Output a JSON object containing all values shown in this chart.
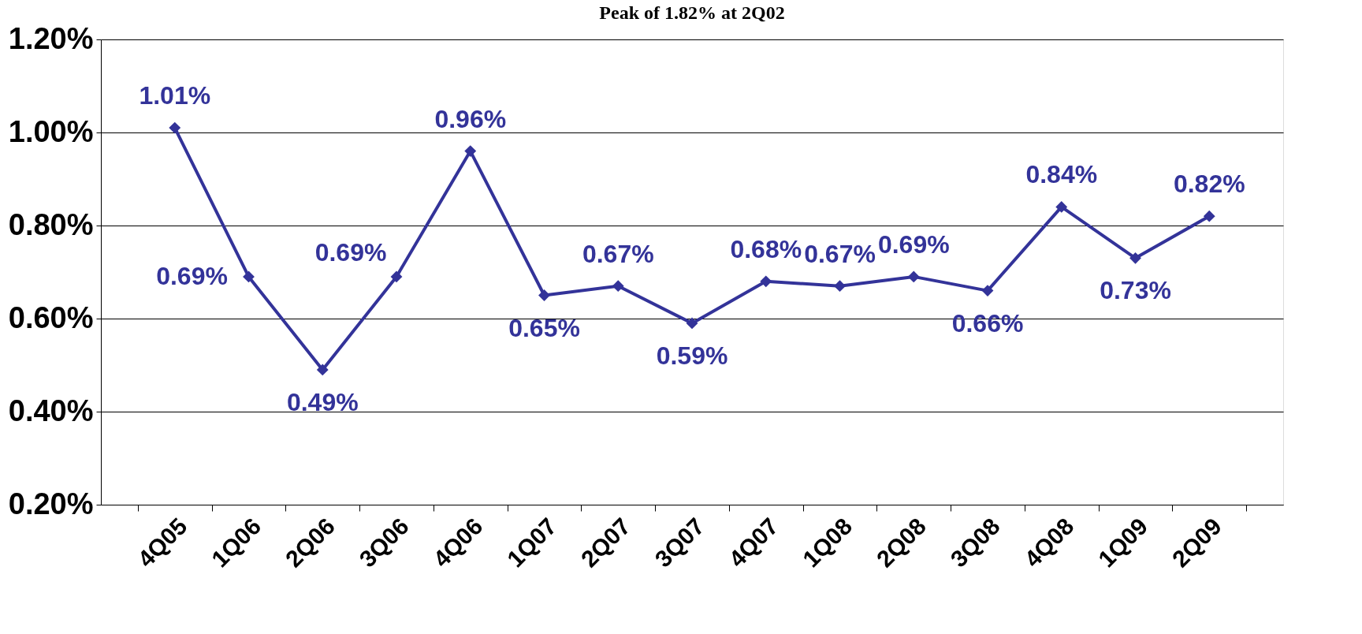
{
  "chart_data": {
    "type": "line",
    "title": "Peak of 1.82% at 2Q02",
    "categories": [
      "4Q05",
      "1Q06",
      "2Q06",
      "3Q06",
      "4Q06",
      "1Q07",
      "2Q07",
      "3Q07",
      "4Q07",
      "1Q08",
      "2Q08",
      "3Q08",
      "4Q08",
      "1Q09",
      "2Q09"
    ],
    "series": [
      {
        "color": "#333399",
        "values": [
          1.01,
          0.69,
          0.49,
          0.69,
          0.96,
          0.65,
          0.67,
          0.59,
          0.68,
          0.67,
          0.69,
          0.66,
          0.84,
          0.73,
          0.82
        ],
        "value_labels": [
          "1.01%",
          "0.69%",
          "0.49%",
          "0.69%",
          "0.96%",
          "0.65%",
          "0.67%",
          "0.59%",
          "0.68%",
          "0.67%",
          "0.69%",
          "0.66%",
          "0.84%",
          "0.73%",
          "0.82%"
        ]
      }
    ],
    "ylim": [
      0.2,
      1.2
    ],
    "yticks": [
      {
        "value": 0.2,
        "label": "0.20%"
      },
      {
        "value": 0.4,
        "label": "0.40%"
      },
      {
        "value": 0.6,
        "label": "0.60%"
      },
      {
        "value": 0.8,
        "label": "0.80%"
      },
      {
        "value": 1.0,
        "label": "1.00%"
      },
      {
        "value": 1.2,
        "label": "1.20%"
      }
    ],
    "grid": "y",
    "marker": "diamond",
    "line_style": "solid"
  }
}
